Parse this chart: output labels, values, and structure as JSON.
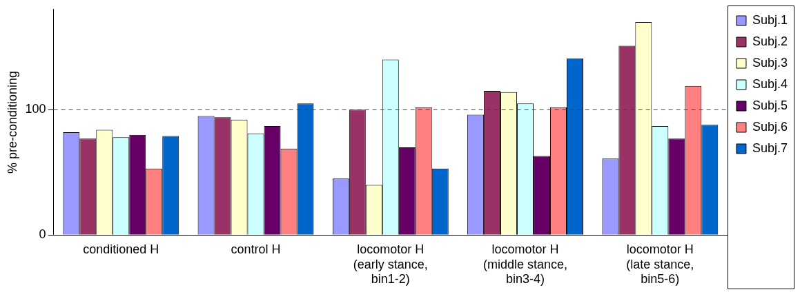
{
  "chart_data": {
    "type": "bar",
    "ylabel": "% pre-conditioning",
    "categories": [
      "conditioned H",
      "control H",
      "locomotor H\n(early stance,\nbin1-2)",
      "locomotor H\n(middle stance,\nbin3-4)",
      "locomotor H\n(late stance,\nbin5-6)"
    ],
    "series": [
      {
        "name": "Subj.1",
        "color": "#9999ff",
        "values": [
          82,
          95,
          45,
          96,
          61
        ]
      },
      {
        "name": "Subj.2",
        "color": "#993366",
        "values": [
          77,
          94,
          100,
          115,
          151
        ]
      },
      {
        "name": "Subj.3",
        "color": "#ffffcc",
        "values": [
          84,
          92,
          40,
          114,
          170
        ]
      },
      {
        "name": "Subj.4",
        "color": "#ccffff",
        "values": [
          78,
          81,
          140,
          105,
          87
        ]
      },
      {
        "name": "Subj.5",
        "color": "#660066",
        "values": [
          80,
          87,
          70,
          63,
          77
        ]
      },
      {
        "name": "Subj.6",
        "color": "#ff8080",
        "values": [
          53,
          69,
          102,
          102,
          119
        ]
      },
      {
        "name": "Subj.7",
        "color": "#0066cc",
        "values": [
          79,
          105,
          53,
          141,
          88
        ]
      }
    ],
    "ylim": [
      0,
      180
    ],
    "yticks": [
      0,
      100
    ],
    "grid": false,
    "legend": "right",
    "ref_lines": [
      {
        "axis": "y",
        "value": 100,
        "color": "#404040",
        "line_style": "dashed"
      }
    ]
  }
}
